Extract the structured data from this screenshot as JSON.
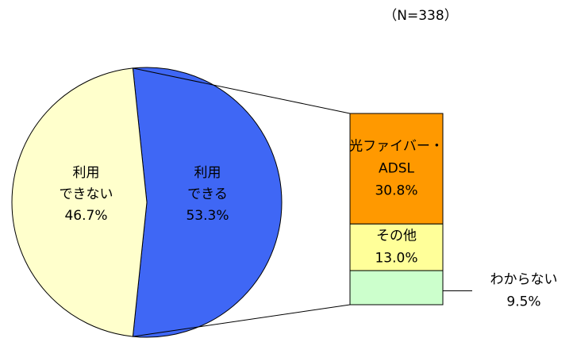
{
  "chart_data": {
    "type": "bar-of-pie",
    "note": "（N=338）",
    "pie": {
      "labels": [
        [
          "利用",
          "できる"
        ],
        [
          "利用",
          "できない"
        ]
      ],
      "values": [
        53.3,
        46.7
      ],
      "value_labels": [
        "53.3%",
        "46.7%"
      ],
      "colors": [
        "#3f67f5",
        "#ffffcc"
      ]
    },
    "bar": {
      "labels": [
        [
          "光ファイバー・",
          "ADSL"
        ],
        [
          "その他"
        ],
        [
          "わからない"
        ]
      ],
      "values": [
        30.8,
        13.0,
        9.5
      ],
      "value_labels": [
        "30.8%",
        "13.0%",
        "9.5%"
      ],
      "colors": [
        "#ff9900",
        "#ffff99",
        "#ccffcc"
      ]
    }
  }
}
